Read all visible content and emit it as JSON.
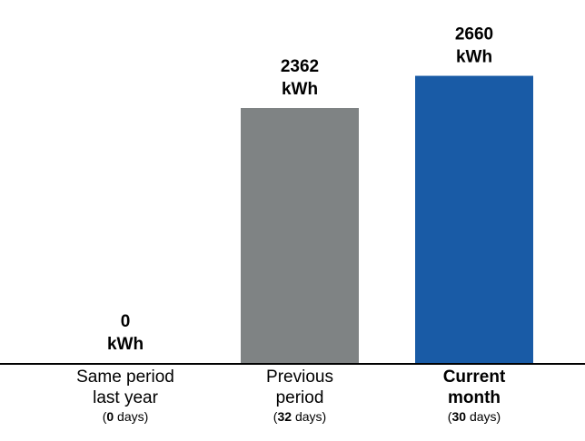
{
  "chart_data": {
    "type": "bar",
    "unit": "kWh",
    "categories": [
      {
        "name": "Same period last year",
        "lines": [
          "Same period",
          "last year"
        ],
        "days": 0,
        "days_unit": "days",
        "bold": false
      },
      {
        "name": "Previous period",
        "lines": [
          "Previous",
          "period"
        ],
        "days": 32,
        "days_unit": "days",
        "bold": false
      },
      {
        "name": "Current month",
        "lines": [
          "Current",
          "month"
        ],
        "days": 30,
        "days_unit": "days",
        "bold": true
      }
    ],
    "values": [
      0,
      2362,
      2660
    ],
    "colors": [
      "#7f8384",
      "#7f8384",
      "#195ba6"
    ],
    "ylim": [
      0,
      2900
    ],
    "grid": false,
    "legend": "none"
  }
}
